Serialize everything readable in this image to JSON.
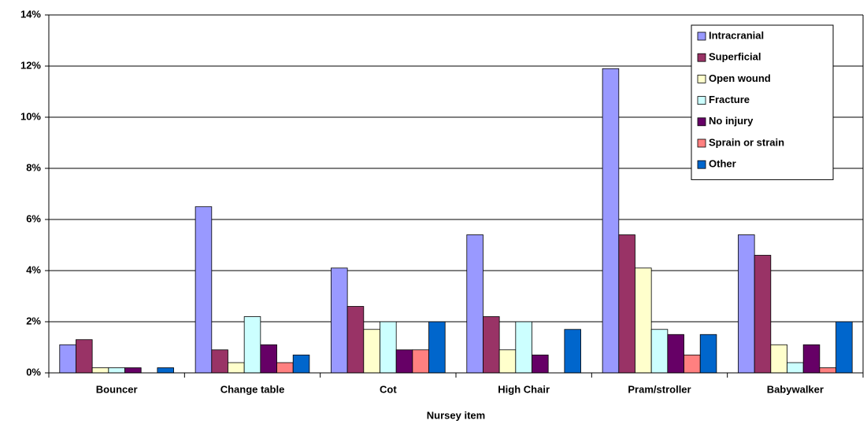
{
  "chart_data": {
    "type": "bar",
    "x_label": "Nursey item",
    "categories": [
      "Bouncer",
      "Change table",
      "Cot",
      "High Chair",
      "Pram/stroller",
      "Babywalker"
    ],
    "series": [
      {
        "name": "Intracranial",
        "color": "#9999ff",
        "values": [
          1.1,
          6.5,
          4.1,
          5.4,
          11.9,
          5.4
        ]
      },
      {
        "name": "Superficial",
        "color": "#993366",
        "values": [
          1.3,
          0.9,
          2.6,
          2.2,
          5.4,
          4.6
        ]
      },
      {
        "name": "Open wound",
        "color": "#ffffcc",
        "values": [
          0.2,
          0.4,
          1.7,
          0.9,
          4.1,
          1.1
        ]
      },
      {
        "name": "Fracture",
        "color": "#ccffff",
        "values": [
          0.2,
          2.2,
          2.0,
          2.0,
          1.7,
          0.4
        ]
      },
      {
        "name": "No injury",
        "color": "#660066",
        "values": [
          0.2,
          1.1,
          0.9,
          0.7,
          1.5,
          1.1
        ]
      },
      {
        "name": "Sprain or strain",
        "color": "#ff8080",
        "values": [
          0,
          0.4,
          0.9,
          0,
          0.7,
          0.2
        ]
      },
      {
        "name": "Other",
        "color": "#0066cc",
        "values": [
          0.2,
          0.7,
          2.0,
          1.7,
          1.5,
          2.0
        ]
      }
    ],
    "ylim": [
      0,
      14
    ],
    "yticks": [
      {
        "value": 0,
        "label": "0%"
      },
      {
        "value": 2,
        "label": "2%"
      },
      {
        "value": 4,
        "label": "4%"
      },
      {
        "value": 6,
        "label": "6%"
      },
      {
        "value": 8,
        "label": "8%"
      },
      {
        "value": 10,
        "label": "10%"
      },
      {
        "value": 12,
        "label": "12%"
      },
      {
        "value": 14,
        "label": "14%"
      }
    ],
    "grid": true,
    "legend": "top-right"
  }
}
